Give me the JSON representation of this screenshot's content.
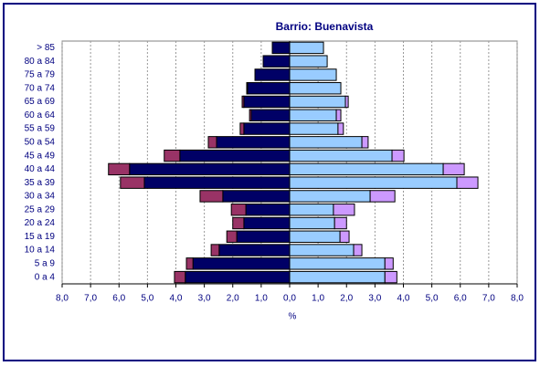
{
  "chart_data": {
    "type": "bar",
    "title": "Barrio: Buenavista",
    "x_label": "%",
    "categories": [
      "0 a 4",
      "5 a 9",
      "10 a 14",
      "15 a 19",
      "20 a 24",
      "25 a 29",
      "30 a 34",
      "35 a 39",
      "40 a 44",
      "45 a 49",
      "50 a 54",
      "55 a 59",
      "60 a 64",
      "65 a 69",
      "70 a 74",
      "75 a 79",
      "80 a 84",
      "> 85"
    ],
    "series": [
      {
        "color": "#000066",
        "side": "left",
        "values": [
          -3.67,
          -3.4,
          -2.48,
          -1.86,
          -1.61,
          -1.54,
          -2.35,
          -5.11,
          -5.63,
          -3.86,
          -2.57,
          -1.61,
          -1.35,
          -1.61,
          -1.48,
          -1.22,
          -0.93,
          -0.61
        ]
      },
      {
        "color": "#993366",
        "side": "left",
        "values": [
          -0.38,
          -0.23,
          -0.28,
          -0.35,
          -0.39,
          -0.51,
          -0.8,
          -0.84,
          -0.74,
          -0.55,
          -0.29,
          -0.13,
          -0.06,
          -0.06,
          -0.03,
          0,
          0,
          0
        ]
      },
      {
        "color": "#99ccff",
        "side": "right",
        "values": [
          3.35,
          3.35,
          2.25,
          1.77,
          1.58,
          1.54,
          2.83,
          5.88,
          5.4,
          3.6,
          2.54,
          1.7,
          1.64,
          1.96,
          1.8,
          1.64,
          1.32,
          1.19
        ]
      },
      {
        "color": "#cc99ff",
        "side": "right",
        "values": [
          0.42,
          0.29,
          0.29,
          0.32,
          0.42,
          0.74,
          0.87,
          0.74,
          0.74,
          0.42,
          0.22,
          0.19,
          0.16,
          0.1,
          0,
          0,
          0,
          0
        ]
      }
    ],
    "xlim": [
      -8,
      8
    ],
    "xticks": [
      {
        "value": -8,
        "label": "8,0"
      },
      {
        "value": -7,
        "label": "7,0"
      },
      {
        "value": -6,
        "label": "6,0"
      },
      {
        "value": -5,
        "label": "5,0"
      },
      {
        "value": -4,
        "label": "4,0"
      },
      {
        "value": -3,
        "label": "3,0"
      },
      {
        "value": -2,
        "label": "2,0"
      },
      {
        "value": -1,
        "label": "1,0"
      },
      {
        "value": 0,
        "label": "0,0"
      },
      {
        "value": 1,
        "label": "1,0"
      },
      {
        "value": 2,
        "label": "2,0"
      },
      {
        "value": 3,
        "label": "3,0"
      },
      {
        "value": 4,
        "label": "4,0"
      },
      {
        "value": 5,
        "label": "5,0"
      },
      {
        "value": 6,
        "label": "6,0"
      },
      {
        "value": 7,
        "label": "7,0"
      },
      {
        "value": 8,
        "label": "8,0"
      }
    ],
    "grid": true
  }
}
